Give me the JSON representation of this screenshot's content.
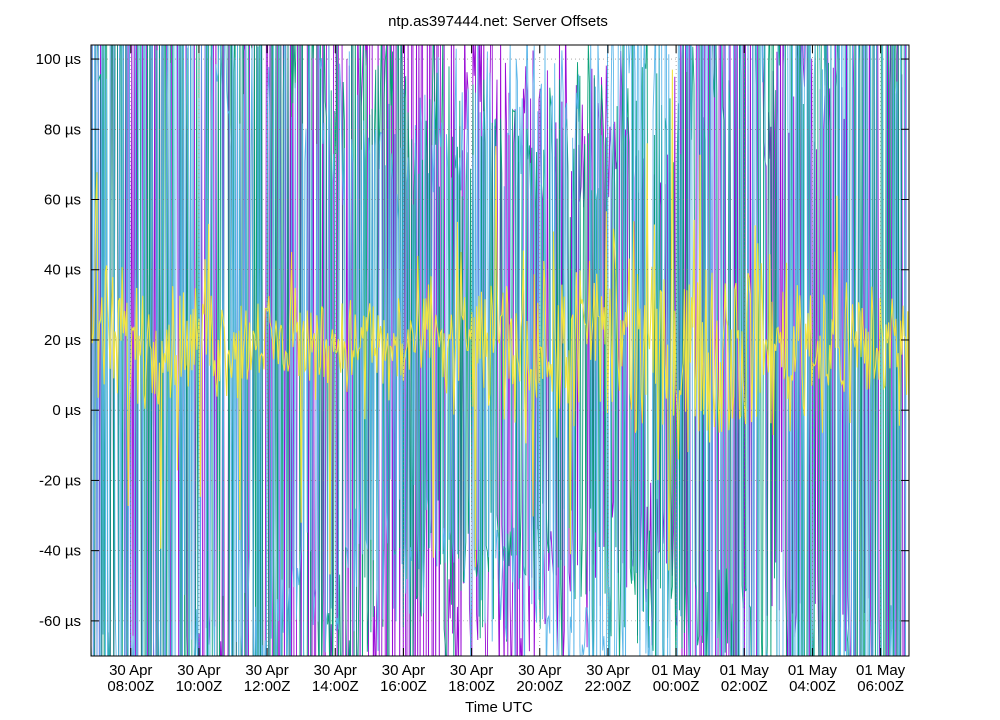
{
  "chart_data": {
    "type": "line",
    "title": "ntp.as397444.net: Server Offsets",
    "xlabel": "Time UTC",
    "ylabel": "",
    "ylim": [
      -70,
      104
    ],
    "x_range": [
      "2025-04-30T06:50Z",
      "2025-05-01T06:50Z"
    ],
    "y_ticks": [
      {
        "value": 100,
        "label": "100 µs"
      },
      {
        "value": 80,
        "label": "80 µs"
      },
      {
        "value": 60,
        "label": "60 µs"
      },
      {
        "value": 40,
        "label": "40 µs"
      },
      {
        "value": 20,
        "label": "20 µs"
      },
      {
        "value": 0,
        "label": "0 µs"
      },
      {
        "value": -20,
        "label": "-20 µs"
      },
      {
        "value": -40,
        "label": "-40 µs"
      },
      {
        "value": -60,
        "label": "-60 µs"
      }
    ],
    "x_ticks": [
      {
        "value": "2025-04-30T08:00Z",
        "line1": "30 Apr",
        "line2": "08:00Z"
      },
      {
        "value": "2025-04-30T10:00Z",
        "line1": "30 Apr",
        "line2": "10:00Z"
      },
      {
        "value": "2025-04-30T12:00Z",
        "line1": "30 Apr",
        "line2": "12:00Z"
      },
      {
        "value": "2025-04-30T14:00Z",
        "line1": "30 Apr",
        "line2": "14:00Z"
      },
      {
        "value": "2025-04-30T16:00Z",
        "line1": "30 Apr",
        "line2": "16:00Z"
      },
      {
        "value": "2025-04-30T18:00Z",
        "line1": "30 Apr",
        "line2": "18:00Z"
      },
      {
        "value": "2025-04-30T20:00Z",
        "line1": "30 Apr",
        "line2": "20:00Z"
      },
      {
        "value": "2025-04-30T22:00Z",
        "line1": "30 Apr",
        "line2": "22:00Z"
      },
      {
        "value": "2025-05-01T00:00Z",
        "line1": "01 May",
        "line2": "00:00Z"
      },
      {
        "value": "2025-05-01T02:00Z",
        "line1": "01 May",
        "line2": "02:00Z"
      },
      {
        "value": "2025-05-01T04:00Z",
        "line1": "01 May",
        "line2": "04:00Z"
      },
      {
        "value": "2025-05-01T06:00Z",
        "line1": "01 May",
        "line2": "06:00Z"
      }
    ],
    "grid": true,
    "series": [
      {
        "color": "#9400d3"
      },
      {
        "color": "#009e73"
      },
      {
        "color": "#56b4e9"
      },
      {
        "color": "#f0e442"
      }
    ]
  }
}
